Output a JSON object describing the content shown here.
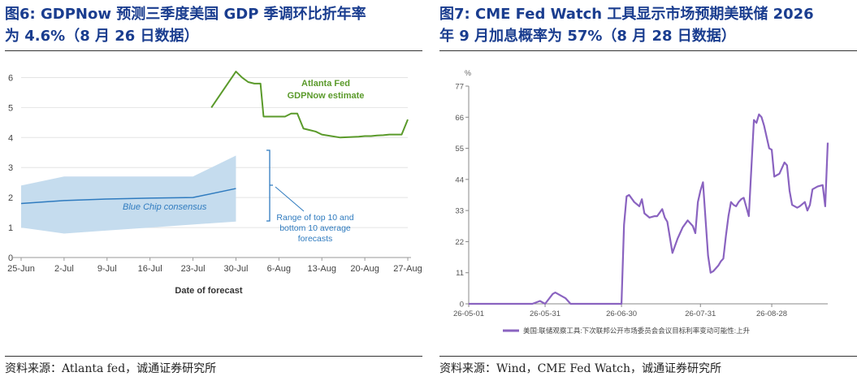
{
  "left": {
    "title_line1": "图6:  GDPNow 预测三季度美国 GDP 季调环比折年率",
    "title_line2": "为 4.6%（8 月 26 日数据）",
    "source": "资料来源：Atlanta fed，诚通证券研究所"
  },
  "right": {
    "title_line1": "图7:  CME Fed Watch 工具显示市场预期美联储 2026",
    "title_line2": "年 9 月加息概率为 57%（8 月 28 日数据）",
    "source": "资料来源：Wind，CME Fed Watch，诚通证券研究所"
  },
  "chart_data": [
    {
      "type": "line",
      "xlabel": "Date of forecast",
      "ylabel": "",
      "ylim": [
        0,
        6.5
      ],
      "yticks": [
        0,
        1,
        2,
        3,
        4,
        5,
        6
      ],
      "xticks": [
        "25-Jun",
        "2-Jul",
        "9-Jul",
        "16-Jul",
        "23-Jul",
        "30-Jul",
        "6-Aug",
        "13-Aug",
        "20-Aug",
        "27-Aug"
      ],
      "grid": "horizontal",
      "band": {
        "label": "Range of top 10 and bottom 10 average forecasts",
        "x": [
          0,
          7,
          14,
          21,
          28,
          35
        ],
        "upper": [
          2.4,
          2.7,
          2.7,
          2.7,
          2.7,
          3.4
        ],
        "lower": [
          1.0,
          0.8,
          0.9,
          1.0,
          1.1,
          1.2
        ],
        "color": "#c5dcee"
      },
      "series": [
        {
          "name": "Blue Chip consensus",
          "color": "#2f7bbf",
          "x": [
            0,
            7,
            14,
            21,
            28,
            35
          ],
          "values": [
            1.8,
            1.9,
            1.95,
            1.98,
            2.0,
            2.3
          ]
        },
        {
          "name": "Atlanta Fed GDPNow estimate",
          "label_line1": "Atlanta Fed",
          "label_line2": "GDPNow estimate",
          "color": "#5a9a2a",
          "x": [
            31,
            35,
            36,
            37,
            38,
            39,
            39.5,
            42,
            43,
            44,
            45,
            46,
            48,
            49,
            52,
            55,
            56,
            57,
            58,
            59,
            60,
            62,
            63
          ],
          "values": [
            5.0,
            6.2,
            6.0,
            5.85,
            5.8,
            5.8,
            4.7,
            4.7,
            4.7,
            4.8,
            4.8,
            4.3,
            4.2,
            4.1,
            4.0,
            4.03,
            4.05,
            4.05,
            4.07,
            4.08,
            4.1,
            4.1,
            4.6
          ]
        }
      ]
    },
    {
      "type": "line",
      "ylabel": "%",
      "ylim": [
        0,
        77
      ],
      "yticks": [
        0,
        11,
        22,
        33,
        44,
        55,
        66,
        77
      ],
      "xticks": [
        "26-05-01",
        "26-05-31",
        "26-06-30",
        "26-07-31",
        "26-08-28"
      ],
      "grid": "none",
      "legend": "bottom",
      "series": [
        {
          "name": "美国:联储观察工具:下次联邦公开市场委员会会议目标利率变动可能性:上升",
          "color": "#8a63c0",
          "x": [
            0,
            25,
            28,
            30,
            33,
            34,
            36,
            38,
            40,
            43,
            47,
            60,
            61,
            62,
            63,
            65,
            67,
            68,
            69,
            71,
            73,
            74,
            76,
            77,
            78,
            80,
            82,
            83,
            84,
            86,
            88,
            89,
            90,
            91,
            92,
            94,
            95,
            96,
            97,
            98,
            99,
            100,
            101,
            102,
            103,
            104,
            105,
            106,
            107,
            108,
            110,
            112,
            113,
            114,
            115,
            116,
            118,
            119,
            120,
            122,
            124,
            125,
            126,
            127,
            129,
            130,
            132,
            133,
            134,
            135,
            137,
            139,
            140,
            141
          ],
          "values": [
            0,
            0,
            1,
            0,
            3.5,
            4,
            3,
            2,
            0,
            0,
            0,
            0,
            28,
            38,
            38.5,
            36,
            34.5,
            37,
            32,
            30.5,
            31,
            31,
            33.5,
            30.5,
            29,
            18,
            23,
            25,
            27,
            29.5,
            27.5,
            25,
            36,
            40,
            43,
            17,
            11,
            11.5,
            12.5,
            13.5,
            15,
            16,
            24,
            31,
            36,
            35,
            34.5,
            36,
            37,
            37.5,
            31,
            65,
            64,
            67,
            66,
            63,
            55,
            54.5,
            45,
            46,
            50,
            49,
            40,
            35,
            34,
            34.5,
            36,
            33,
            35,
            40.5,
            41.5,
            42,
            34.5,
            57
          ]
        }
      ]
    }
  ]
}
